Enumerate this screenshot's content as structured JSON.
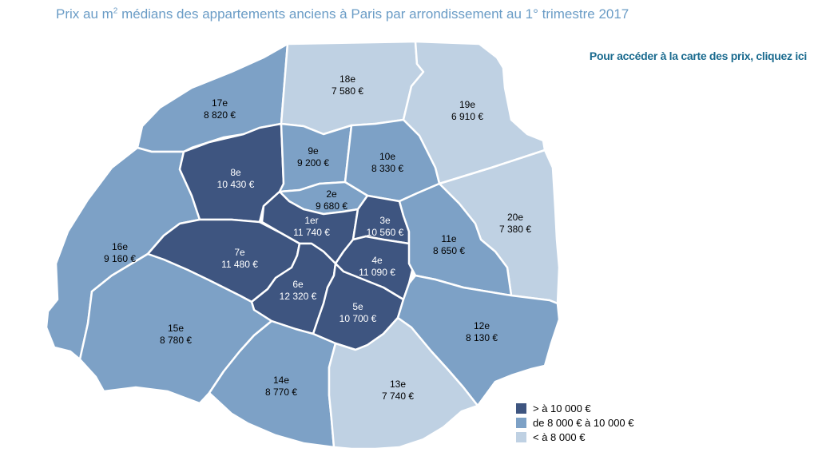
{
  "title": {
    "text": "Prix au m",
    "sup": "2",
    "rest": " médians des appartements anciens à Paris par arrondissement au 1° trimestre 2017"
  },
  "link": "Pour accéder à la carte des prix, cliquez ici",
  "colors": {
    "dark": "#3e5580",
    "mid": "#7da1c6",
    "light": "#bfd1e3",
    "border": "#ffffff",
    "text_dark": "#ffffff",
    "text_other": "#000000"
  },
  "legend": [
    {
      "label": "> à 10 000 €",
      "color_key": "dark"
    },
    {
      "label": "de 8 000 € à 10 000 €",
      "color_key": "mid"
    },
    {
      "label": "< à 8 000 €",
      "color_key": "light"
    }
  ],
  "districts": [
    {
      "id": "1",
      "name": "1er",
      "price": "11 740 €",
      "cls": "dark"
    },
    {
      "id": "2",
      "name": "2e",
      "price": "9 680 €",
      "cls": "mid"
    },
    {
      "id": "3",
      "name": "3e",
      "price": "10 560 €",
      "cls": "dark"
    },
    {
      "id": "4",
      "name": "4e",
      "price": "11 090 €",
      "cls": "dark"
    },
    {
      "id": "5",
      "name": "5e",
      "price": "10 700 €",
      "cls": "dark"
    },
    {
      "id": "6",
      "name": "6e",
      "price": "12 320 €",
      "cls": "dark"
    },
    {
      "id": "7",
      "name": "7e",
      "price": "11 480 €",
      "cls": "dark"
    },
    {
      "id": "8",
      "name": "8e",
      "price": "10 430 €",
      "cls": "dark"
    },
    {
      "id": "9",
      "name": "9e",
      "price": "9 200 €",
      "cls": "mid"
    },
    {
      "id": "10",
      "name": "10e",
      "price": "8 330 €",
      "cls": "mid"
    },
    {
      "id": "11",
      "name": "11e",
      "price": "8 650 €",
      "cls": "mid"
    },
    {
      "id": "12",
      "name": "12e",
      "price": "8 130 €",
      "cls": "mid"
    },
    {
      "id": "13",
      "name": "13e",
      "price": "7 740 €",
      "cls": "light"
    },
    {
      "id": "14",
      "name": "14e",
      "price": "8 770 €",
      "cls": "mid"
    },
    {
      "id": "15",
      "name": "15e",
      "price": "8 780 €",
      "cls": "mid"
    },
    {
      "id": "16",
      "name": "16e",
      "price": "9 160 €",
      "cls": "mid"
    },
    {
      "id": "17",
      "name": "17e",
      "price": "8 820 €",
      "cls": "mid"
    },
    {
      "id": "18",
      "name": "18e",
      "price": "7 580 €",
      "cls": "light"
    },
    {
      "id": "19",
      "name": "19e",
      "price": "6 910 €",
      "cls": "light"
    },
    {
      "id": "20",
      "name": "20e",
      "price": "7 380 €",
      "cls": "light"
    }
  ]
}
